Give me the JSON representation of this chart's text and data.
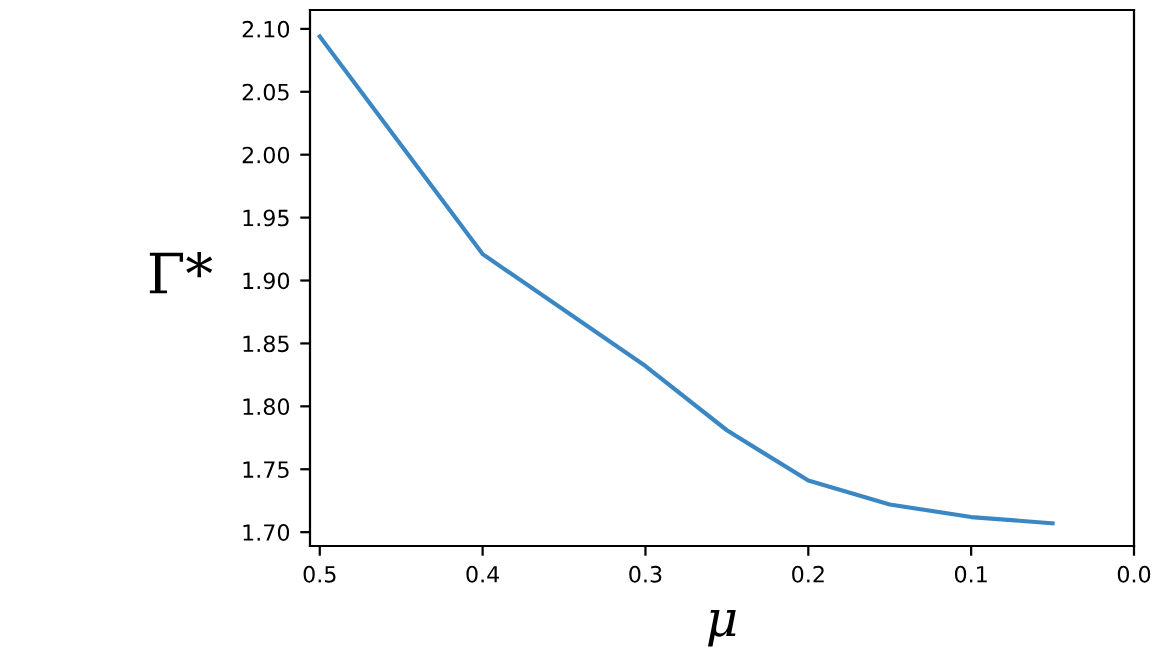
{
  "chart_data": {
    "type": "line",
    "xlabel": "μ",
    "ylabel": "Γ*",
    "x": [
      0.5,
      0.4,
      0.3,
      0.25,
      0.2,
      0.15,
      0.1,
      0.05
    ],
    "series": [
      {
        "color": "#3a87c4",
        "values": [
          2.094,
          1.921,
          1.832,
          1.781,
          1.741,
          1.722,
          1.712,
          1.707
        ]
      }
    ],
    "xlim": [
      0.506,
      0.0
    ],
    "ylim": [
      1.689,
      2.115
    ],
    "xticks": [
      {
        "value": 0.5,
        "label": "0.5"
      },
      {
        "value": 0.4,
        "label": "0.4"
      },
      {
        "value": 0.3,
        "label": "0.3"
      },
      {
        "value": 0.2,
        "label": "0.2"
      },
      {
        "value": 0.1,
        "label": "0.1"
      },
      {
        "value": 0.0,
        "label": "0.0"
      }
    ],
    "yticks": [
      {
        "value": 1.7,
        "label": "1.70"
      },
      {
        "value": 1.75,
        "label": "1.75"
      },
      {
        "value": 1.8,
        "label": "1.80"
      },
      {
        "value": 1.85,
        "label": "1.85"
      },
      {
        "value": 1.9,
        "label": "1.90"
      },
      {
        "value": 1.95,
        "label": "1.95"
      },
      {
        "value": 2.0,
        "label": "2.00"
      },
      {
        "value": 2.05,
        "label": "2.05"
      },
      {
        "value": 2.1,
        "label": "2.10"
      }
    ],
    "grid": false,
    "legend": false
  }
}
